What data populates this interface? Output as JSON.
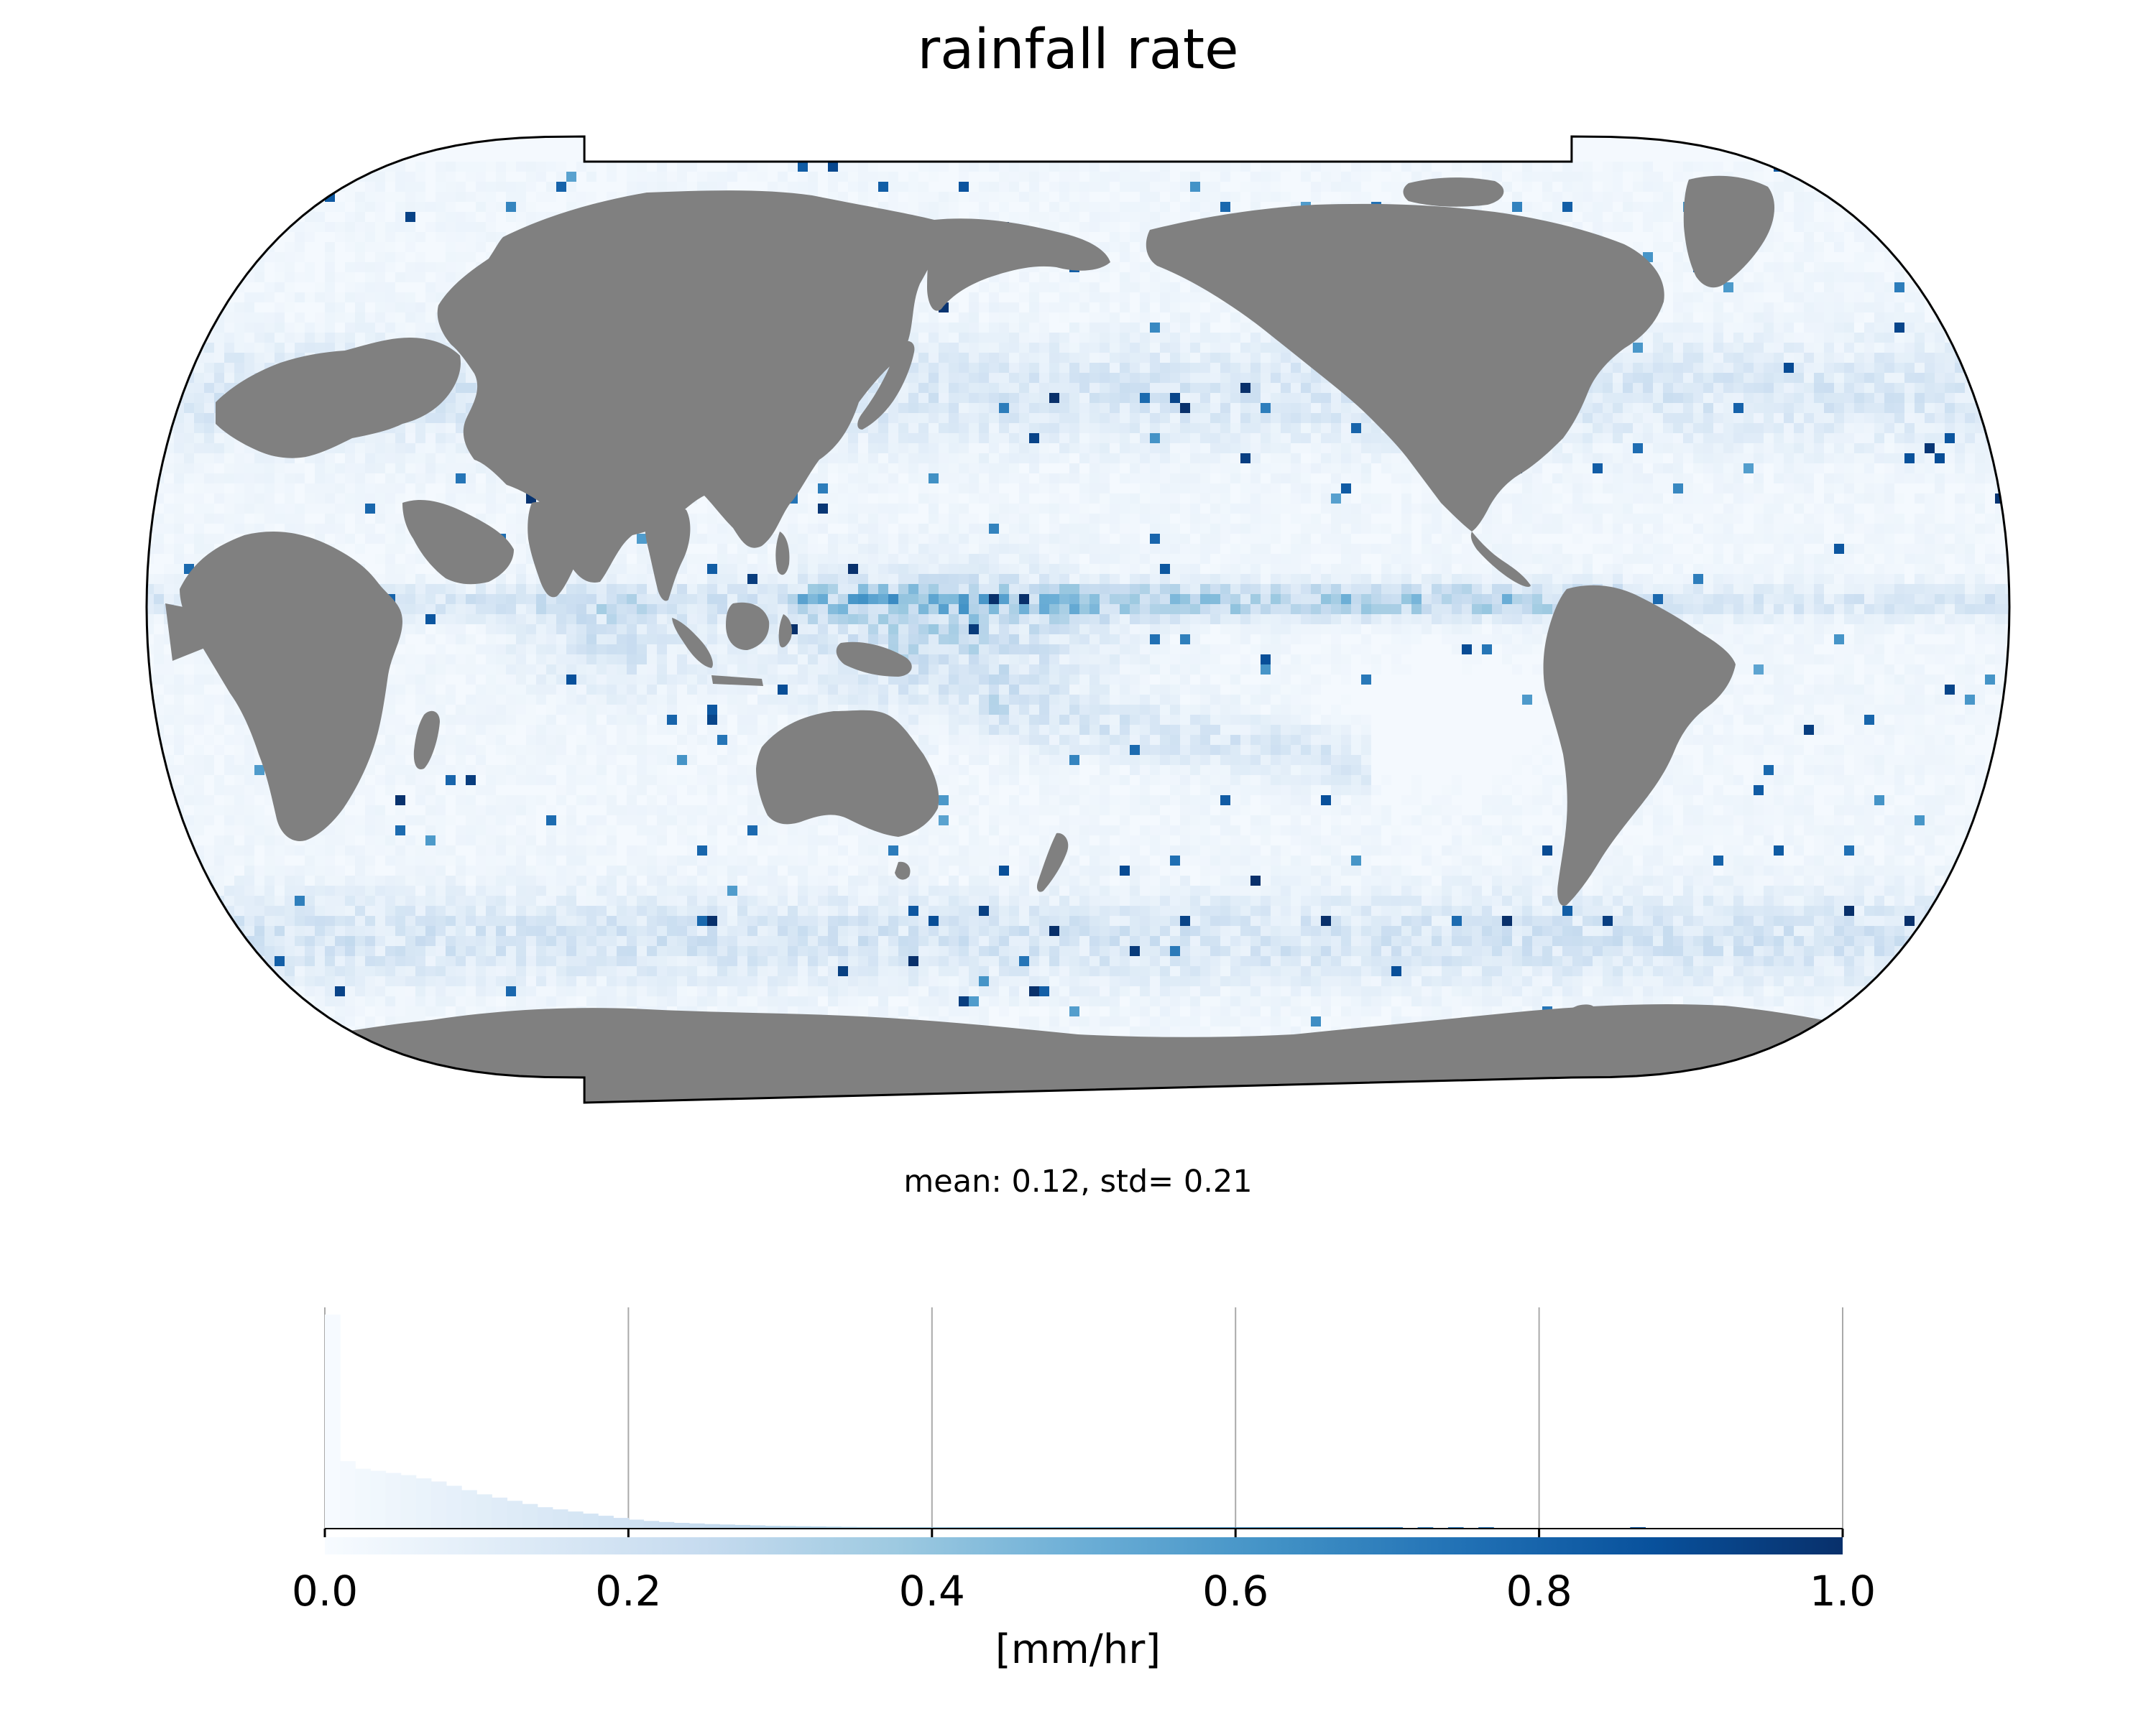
{
  "title": "rainfall rate",
  "stats_text": "mean: 0.12, std= 0.21",
  "colorbar": {
    "label": "[mm/hr]",
    "ticks": [
      "0.0",
      "0.2",
      "0.4",
      "0.6",
      "0.8",
      "1.0"
    ],
    "range": [
      0,
      1
    ],
    "colormap": "Blues",
    "colors": [
      "#f7fbff",
      "#deebf7",
      "#c6dbef",
      "#9ecae1",
      "#6baed6",
      "#4292c6",
      "#2171b5",
      "#08519c",
      "#08306b"
    ]
  },
  "map": {
    "projection": "Robinson",
    "central_longitude": 180,
    "land_color": "#808080"
  },
  "histogram": {
    "bin_width": 0.01,
    "heights": [
      1.0,
      0.315,
      0.28,
      0.27,
      0.26,
      0.25,
      0.235,
      0.22,
      0.2,
      0.18,
      0.16,
      0.145,
      0.13,
      0.115,
      0.1,
      0.09,
      0.08,
      0.07,
      0.06,
      0.05,
      0.042,
      0.036,
      0.031,
      0.027,
      0.024,
      0.021,
      0.019,
      0.017,
      0.015,
      0.013,
      0.012,
      0.011,
      0.01,
      0.009,
      0.008,
      0.0075,
      0.007,
      0.0065,
      0.006,
      0.0055,
      0.005,
      0.0046,
      0.0042,
      0.0039,
      0.0036,
      0.0033,
      0.003,
      0.0028,
      0.0026,
      0.0024,
      0.0022,
      0.002,
      0.0019,
      0.0018,
      0.0017,
      0.0016,
      0.0015,
      0.0014,
      0.0013,
      0.0012,
      0.0011,
      0.001,
      0.001,
      0.0009,
      0.0009,
      0.0008,
      0.0008,
      0.0007,
      0.0007,
      0.0007,
      0.0006,
      0,
      0.0006,
      0,
      0.0005,
      0,
      0.0005,
      0,
      0,
      0,
      0,
      0,
      0,
      0,
      0,
      0,
      0.0005,
      0,
      0,
      0,
      0,
      0,
      0,
      0,
      0,
      0,
      0,
      0,
      0,
      0
    ]
  }
}
